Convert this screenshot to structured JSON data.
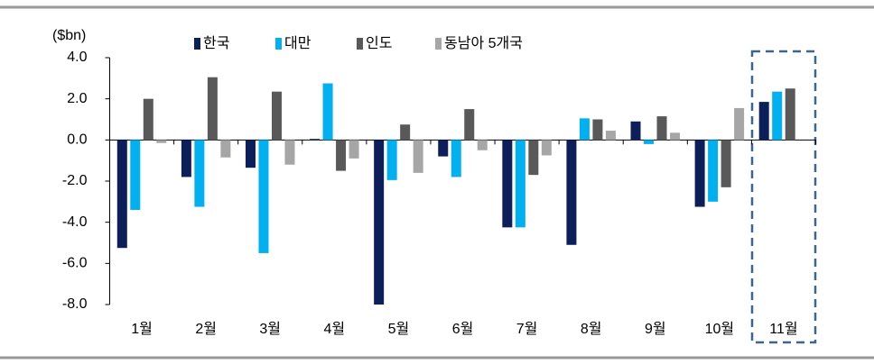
{
  "chart_data": {
    "type": "bar",
    "y_label": "($bn)",
    "categories": [
      "1월",
      "2월",
      "3월",
      "4월",
      "5월",
      "6월",
      "7월",
      "8월",
      "9월",
      "10월",
      "11월"
    ],
    "series": [
      {
        "name": "한국",
        "color": "#0c1f5b",
        "values": [
          -5.25,
          -1.8,
          -1.35,
          0.05,
          -8.0,
          -0.8,
          -4.25,
          -5.1,
          0.9,
          -3.25,
          1.85
        ]
      },
      {
        "name": "대만",
        "color": "#00b0f0",
        "values": [
          -3.4,
          -3.25,
          -5.5,
          2.75,
          -1.95,
          -1.8,
          -4.25,
          1.05,
          -0.2,
          -3.0,
          2.35
        ]
      },
      {
        "name": "인도",
        "color": "#595959",
        "values": [
          2.0,
          3.05,
          2.35,
          -1.5,
          0.75,
          1.5,
          -1.7,
          1.0,
          1.15,
          -2.3,
          2.5
        ]
      },
      {
        "name": "동남아 5개국",
        "color": "#a6a6a6",
        "values": [
          -0.15,
          -0.85,
          -1.2,
          -0.9,
          -1.6,
          -0.5,
          -0.75,
          0.45,
          0.35,
          1.55,
          null
        ]
      }
    ],
    "ylim": [
      -8,
      4
    ],
    "yticks": [
      {
        "value": -8,
        "label": "-8.0"
      },
      {
        "value": -6,
        "label": "-6.0"
      },
      {
        "value": -4,
        "label": "-4.0"
      },
      {
        "value": -2,
        "label": "-2.0"
      },
      {
        "value": 0,
        "label": "0.0"
      },
      {
        "value": 2,
        "label": "2.0"
      },
      {
        "value": 4,
        "label": "4.0"
      }
    ],
    "grid": false
  }
}
